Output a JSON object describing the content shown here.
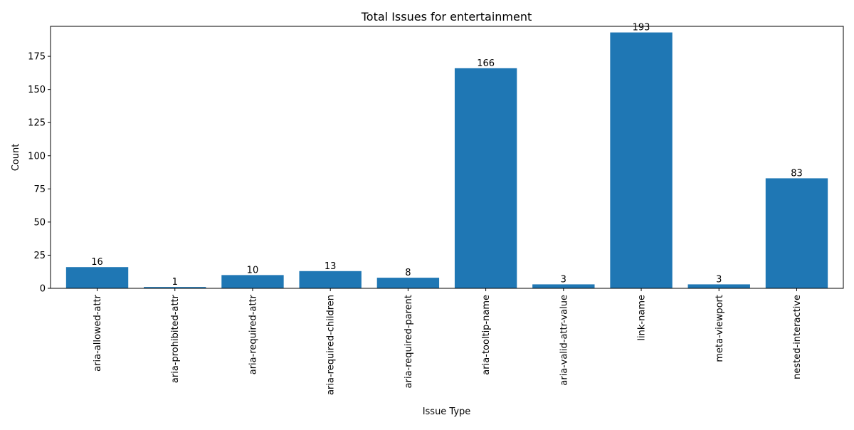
{
  "colors": {
    "bar": "#1f77b4",
    "axis": "#000000",
    "background": "#ffffff"
  },
  "chart_data": {
    "type": "bar",
    "title": "Total Issues for entertainment",
    "xlabel": "Issue Type",
    "ylabel": "Count",
    "categories": [
      "aria-allowed-attr",
      "aria-prohibited-attr",
      "aria-required-attr",
      "aria-required-children",
      "aria-required-parent",
      "aria-tooltip-name",
      "aria-valid-attr-value",
      "link-name",
      "meta-viewport",
      "nested-interactive"
    ],
    "values": [
      16,
      1,
      10,
      13,
      8,
      166,
      3,
      193,
      3,
      83
    ],
    "ylim": [
      0,
      197.6
    ],
    "yticks": [
      0,
      25,
      50,
      75,
      100,
      125,
      150,
      175
    ],
    "grid": false,
    "legend": "none",
    "data_labels": true
  }
}
